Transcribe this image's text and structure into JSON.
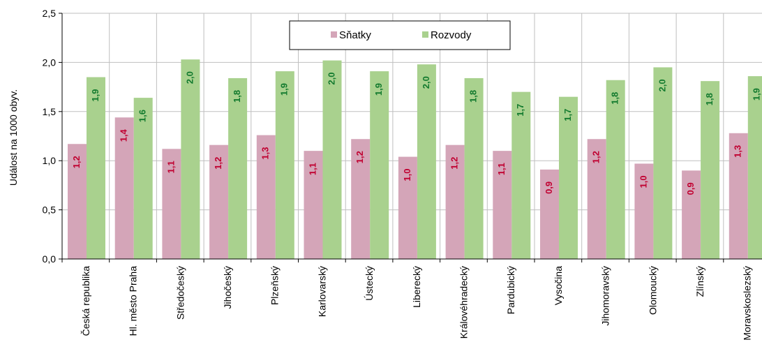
{
  "chart_data": {
    "type": "bar",
    "ylabel": "Událost na 1000 obyv.",
    "ylim": [
      0,
      2.5
    ],
    "yticks": [
      "0,0",
      "0,5",
      "1,0",
      "1,5",
      "2,0",
      "2,5"
    ],
    "grid": true,
    "legend_position": "top-center",
    "categories": [
      "Česká republika",
      "Hl. město Praha",
      "Středočeský",
      "Jihočeský",
      "Plzeňský",
      "Karlovarský",
      "Ústecký",
      "Liberecký",
      "Královéhradecký",
      "Pardubický",
      "Vysočina",
      "Jihomoravský",
      "Olomoucký",
      "Zlínský",
      "Moravskoslezský"
    ],
    "series": [
      {
        "name": "Sňatky",
        "color": "#d4a5b8",
        "label_color": "#c00030",
        "values": [
          1.17,
          1.44,
          1.12,
          1.16,
          1.26,
          1.1,
          1.22,
          1.04,
          1.16,
          1.1,
          0.91,
          1.22,
          0.97,
          0.9,
          1.28
        ],
        "labels": [
          "1,2",
          "1,4",
          "1,1",
          "1,2",
          "1,3",
          "1,1",
          "1,2",
          "1,0",
          "1,2",
          "1,1",
          "0,9",
          "1,2",
          "1,0",
          "0,9",
          "1,3"
        ]
      },
      {
        "name": "Rozvody",
        "color": "#a9d18e",
        "label_color": "#127a2e",
        "values": [
          1.85,
          1.64,
          2.03,
          1.84,
          1.91,
          2.02,
          1.91,
          1.98,
          1.84,
          1.7,
          1.65,
          1.82,
          1.95,
          1.81,
          1.86
        ],
        "labels": [
          "1,9",
          "1,6",
          "2,0",
          "1,8",
          "1,9",
          "2,0",
          "1,9",
          "2,0",
          "1,8",
          "1,7",
          "1,7",
          "1,8",
          "2,0",
          "1,8",
          "1,9"
        ]
      }
    ]
  }
}
